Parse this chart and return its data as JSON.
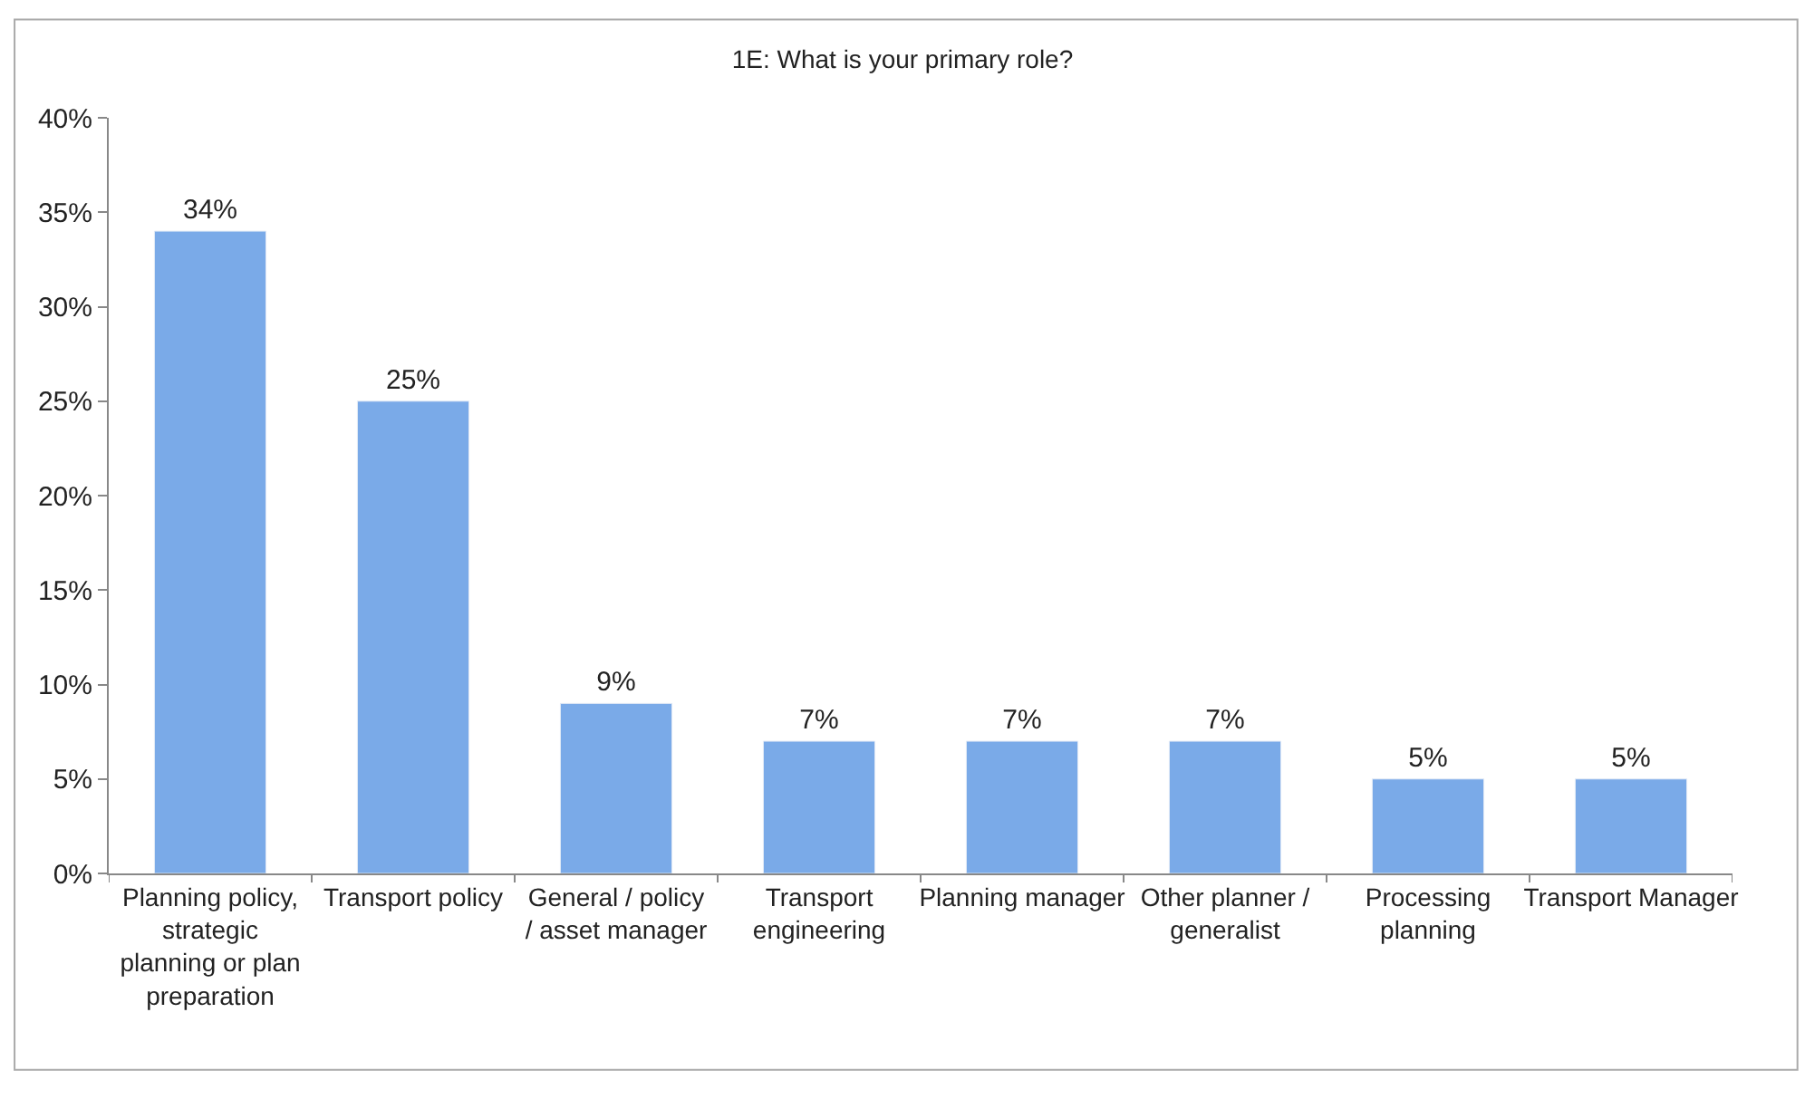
{
  "chart_data": {
    "type": "bar",
    "title": "1E: What is your primary role?",
    "categories": [
      "Planning policy, strategic planning or plan preparation",
      "Transport policy",
      "General / policy / asset manager",
      "Transport engineering",
      "Planning manager",
      "Other planner / generalist",
      "Processing planning",
      "Transport Manager"
    ],
    "values": [
      34,
      25,
      9,
      7,
      7,
      7,
      5,
      5
    ],
    "value_labels": [
      "34%",
      "25%",
      "9%",
      "7%",
      "7%",
      "7%",
      "5%",
      "5%"
    ],
    "color": "#7aaae8",
    "ylim": [
      0,
      40
    ],
    "yticks": [
      {
        "value": 0,
        "label": "0%"
      },
      {
        "value": 5,
        "label": "5%"
      },
      {
        "value": 10,
        "label": "10%"
      },
      {
        "value": 15,
        "label": "15%"
      },
      {
        "value": 20,
        "label": "20%"
      },
      {
        "value": 25,
        "label": "25%"
      },
      {
        "value": 30,
        "label": "30%"
      },
      {
        "value": 35,
        "label": "35%"
      },
      {
        "value": 40,
        "label": "40%"
      }
    ],
    "legend": false
  }
}
